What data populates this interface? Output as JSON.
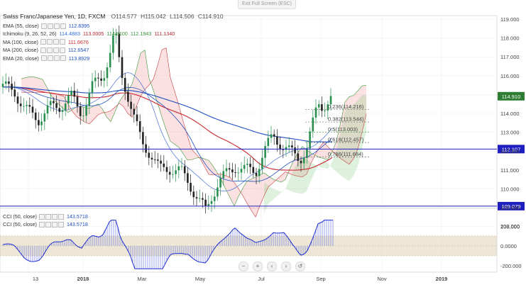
{
  "toolbar": {
    "exit_fullscreen": "Exit Full Screen (ESC)"
  },
  "header": {
    "pair": "Swiss Franc/Japanese Yen, 1D, FXCM",
    "open": "O114.577",
    "high": "H115.042",
    "low": "L114.506",
    "close": "C114.910"
  },
  "indicators": [
    {
      "label": "EMA (55, close)",
      "values": [
        "112.8395"
      ],
      "color": "#1f4fbf"
    },
    {
      "label": "Ichimoku (9, 26, 52, 26)",
      "values": [
        "114.4883",
        "113.0005",
        "114.9100",
        "112.1943",
        "111.1340"
      ],
      "colors": [
        "#2e6fdb",
        "#b0262c",
        "#3a8f3a",
        "#3a8f3a",
        "#b0262c"
      ]
    },
    {
      "label": "MA (100, close)",
      "values": [
        "111.6676"
      ],
      "color": "#c8282e"
    },
    {
      "label": "MA (200, close)",
      "values": [
        "112.6547"
      ],
      "color": "#1f4fbf"
    },
    {
      "label": "EMA (20, close)",
      "values": [
        "113.8929"
      ],
      "color": "#1f4fbf"
    }
  ],
  "cci_indicators": [
    {
      "label": "CCI (50, close)",
      "value": "143.5718",
      "color": "#1f4fbf"
    },
    {
      "label": "CCI (50, close)",
      "value": "143.5718",
      "color": "#1f4fbf"
    }
  ],
  "price_axis": {
    "ticks": [
      "119.000",
      "118.000",
      "117.000",
      "116.000",
      "115.000",
      "114.000",
      "113.000",
      "112.000",
      "111.000",
      "110.000",
      "109.000",
      "108.000"
    ],
    "current_price": "114.910",
    "hline_upper": "112.107",
    "hline_lower": "109.079"
  },
  "cci_axis": {
    "ticks": [
      "200.000",
      "0.0000",
      "-200.000"
    ]
  },
  "time_axis": {
    "labels": [
      "13",
      "2018",
      "Mar",
      "May",
      "Jul",
      "Sep",
      "Nov",
      "2019"
    ]
  },
  "fibonacci": [
    {
      "label": "0.236(114.216)",
      "color": "#555555"
    },
    {
      "label": "0.382(113.544)",
      "color": "#555555"
    },
    {
      "label": "0.5(113.003)",
      "color": "#3a9a3a"
    },
    {
      "label": "0.618(112.457)",
      "color": "#555555"
    },
    {
      "label": "0.786(111.684)",
      "color": "#555555"
    }
  ],
  "colors": {
    "up": "#2a8f4e",
    "down": "#222222",
    "price_badge": "#2e7d32",
    "hline": "#1f1fbf"
  }
}
